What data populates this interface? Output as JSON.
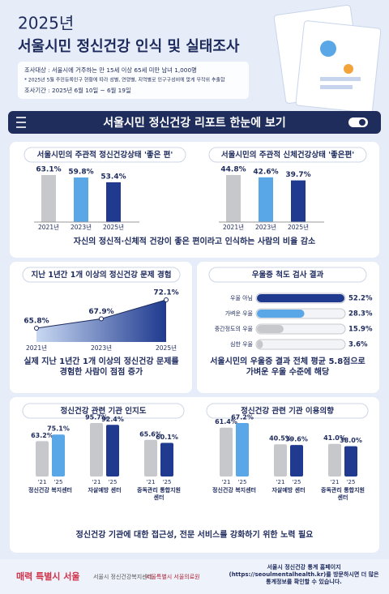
{
  "header": {
    "year": "2025년",
    "title": "서울시민 정신건강 인식 및 실태조사",
    "target": "조사대상 : 서울시에 거주하는 만 15세 이상 65세 미만 남녀 1,000명",
    "note": "* 2025년 5월 주민등록인구 현황에 따라 성별, 연령별, 지역별로 인구구성비에 맞게 무작위 추출함",
    "period": "조사기간 : 2025년 6월 10일 ~ 6월 19일"
  },
  "banner": "서울시민 정신건강 리포트 한눈에 보기",
  "chart_data": [
    {
      "type": "bar",
      "title": "서울시민의 주관적 정신건강상태 '좋은 편'",
      "categories": [
        "2021년",
        "2023년",
        "2025년"
      ],
      "values": [
        63.1,
        59.8,
        53.4
      ],
      "value_labels": [
        "63.1%",
        "59.8%",
        "53.4%"
      ],
      "colors": [
        "#c6c8cc",
        "#5aa7e8",
        "#1f3a8f"
      ]
    },
    {
      "type": "bar",
      "title": "서울시민의 주관적 신체건강상태 '좋은편'",
      "categories": [
        "2021년",
        "2023년",
        "2025년"
      ],
      "values": [
        44.8,
        42.6,
        39.7
      ],
      "value_labels": [
        "44.8%",
        "42.6%",
        "39.7%"
      ],
      "colors": [
        "#c6c8cc",
        "#5aa7e8",
        "#1f3a8f"
      ]
    },
    {
      "type": "area",
      "title": "지난 1년간 1개 이상의 정신건강 문제 경험",
      "categories": [
        "2021년",
        "2023년",
        "2025년"
      ],
      "values": [
        65.8,
        67.9,
        72.1
      ],
      "value_labels": [
        "65.8%",
        "67.9%",
        "72.1%"
      ],
      "color": "#1f3a8f"
    },
    {
      "type": "hbar",
      "title": "우울증 척도 검사 결과",
      "categories": [
        "우울 아님",
        "가벼운 우울",
        "중간정도의 우울",
        "심한 우울"
      ],
      "values": [
        52.2,
        28.3,
        15.9,
        3.6
      ],
      "value_labels": [
        "52.2%",
        "28.3%",
        "15.9%",
        "3.6%"
      ],
      "colors": [
        "#1f3a8f",
        "#5aa7e8",
        "#c6c8cc",
        "#c6c8cc"
      ]
    },
    {
      "type": "grouped_bar",
      "title": "정신건강 관련 기관 인지도",
      "categories": [
        "정신건강 복지센터",
        "자살예방 센터",
        "중독관리 통합지원센터"
      ],
      "series": [
        {
          "name": "'21",
          "color": "#c6c8cc",
          "values": [
            63.2,
            95.7,
            65.6
          ],
          "value_labels": [
            "63.2%",
            "95.7%",
            "65.6%"
          ]
        },
        {
          "name": "'25",
          "colors": [
            "#5aa7e8",
            "#1f3a8f",
            "#1f3a8f"
          ],
          "values": [
            75.1,
            92.4,
            60.1
          ],
          "value_labels": [
            "75.1%",
            "92.4%",
            "60.1%"
          ]
        }
      ]
    },
    {
      "type": "grouped_bar",
      "title": "정신건강 관련 기관 이용의향",
      "categories": [
        "정신건강 복지센터",
        "자살예방 센터",
        "중독관리 통합지원센터"
      ],
      "series": [
        {
          "name": "'21",
          "color": "#c6c8cc",
          "values": [
            61.4,
            40.5,
            41.0
          ],
          "value_labels": [
            "61.4%",
            "40.5%",
            "41.0%"
          ]
        },
        {
          "name": "'25",
          "colors": [
            "#5aa7e8",
            "#1f3a8f",
            "#1f3a8f"
          ],
          "values": [
            67.2,
            39.6,
            38.0
          ],
          "value_labels": [
            "67.2%",
            "39.6%",
            "38.0%"
          ]
        }
      ]
    }
  ],
  "captions": [
    "자신의 정신적·신체적 건강이 좋은 편이라고 인식하는 사람의 비율 감소",
    "실제 지난 1년간 1개 이상의 정신건강 문제를 경험한 사람이 점점 증가",
    "서울시민의 우울증 결과 전체 평균 5.8점으로 가벼운 우울 수준에 해당",
    "정신건강 기관에 대한 접근성, 전문 서비스를 강화하기 위한 노력 필요"
  ],
  "footer": {
    "logos": [
      "매력 특별시 서울",
      "서울시 정신건강복지센터",
      "서울특별시 서울의료원"
    ],
    "text": "서울시 정신건강 통계 홈페이지(https://seoulmentalhealth.kr)를 방문하시면 더 많은 통계정보를 확인할 수 있습니다."
  }
}
